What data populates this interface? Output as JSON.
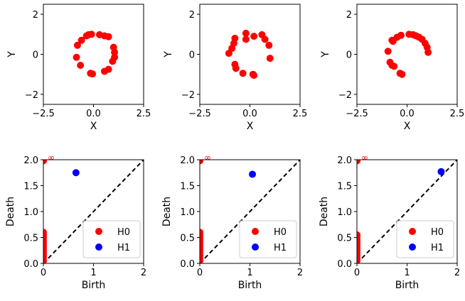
{
  "colors": {
    "h0": "#ff0000",
    "h1": "#0000ff",
    "scatter": "#ff0000",
    "axis": "#000000",
    "diag": "#000000"
  },
  "chart_data": [
    {
      "type": "scatter",
      "panel": "point-cloud-1",
      "xlabel": "X",
      "ylabel": "Y",
      "xlim": [
        -2.5,
        2.5
      ],
      "ylim": [
        -2.5,
        2.5
      ],
      "xticks": [
        "−2.5",
        "0.0",
        "2.5"
      ],
      "xtick_values": [
        -2.5,
        0,
        2.5
      ],
      "yticks": [
        "−2",
        "0",
        "2"
      ],
      "ytick_values": [
        -2,
        0,
        2
      ],
      "points": [
        [
          -0.25,
          0.98
        ],
        [
          -0.1,
          1.0
        ],
        [
          0.3,
          0.98
        ],
        [
          0.55,
          0.92
        ],
        [
          0.75,
          0.88
        ],
        [
          1.0,
          0.35
        ],
        [
          1.05,
          0.1
        ],
        [
          1.05,
          -0.15
        ],
        [
          0.95,
          -0.35
        ],
        [
          0.75,
          -0.75
        ],
        [
          0.55,
          -0.85
        ],
        [
          -0.05,
          -0.98
        ],
        [
          -0.15,
          -0.95
        ],
        [
          -0.65,
          -0.55
        ],
        [
          -0.85,
          -0.15
        ],
        [
          -0.8,
          0.45
        ],
        [
          -0.6,
          0.7
        ],
        [
          -0.35,
          0.92
        ]
      ]
    },
    {
      "type": "scatter",
      "panel": "point-cloud-2",
      "xlabel": "X",
      "ylabel": "Y",
      "xlim": [
        -2.5,
        2.5
      ],
      "ylim": [
        -2.5,
        2.5
      ],
      "xticks": [
        "−2.5",
        "0.0",
        "2.5"
      ],
      "xtick_values": [
        -2.5,
        0,
        2.5
      ],
      "yticks": [
        "−2",
        "0",
        "2"
      ],
      "ytick_values": [
        -2,
        0,
        2
      ],
      "points": [
        [
          -0.2,
          1.05
        ],
        [
          0.2,
          0.9
        ],
        [
          0.6,
          0.98
        ],
        [
          -0.2,
          0.75
        ],
        [
          -0.75,
          0.8
        ],
        [
          -0.8,
          0.55
        ],
        [
          -0.9,
          0.3
        ],
        [
          -1.05,
          0.05
        ],
        [
          0.75,
          0.75
        ],
        [
          0.95,
          0.45
        ],
        [
          1.0,
          -0.2
        ],
        [
          -0.75,
          -0.5
        ],
        [
          -0.7,
          -0.7
        ],
        [
          -0.35,
          -0.95
        ],
        [
          0.15,
          -1.0
        ],
        [
          0.2,
          -1.05
        ]
      ]
    },
    {
      "type": "scatter",
      "panel": "point-cloud-3",
      "xlabel": "X",
      "ylabel": "Y",
      "xlim": [
        -2.5,
        2.5
      ],
      "ylim": [
        -2.5,
        2.5
      ],
      "xticks": [
        "−2.5",
        "0.0",
        "2.5"
      ],
      "xtick_values": [
        -2.5,
        0,
        2.5
      ],
      "yticks": [
        "−2",
        "0",
        "2"
      ],
      "ytick_values": [
        -2,
        0,
        2
      ],
      "points": [
        [
          0.1,
          1.0
        ],
        [
          0.3,
          0.98
        ],
        [
          0.45,
          0.92
        ],
        [
          0.6,
          0.85
        ],
        [
          0.75,
          0.75
        ],
        [
          0.9,
          0.55
        ],
        [
          1.0,
          0.35
        ],
        [
          1.05,
          0.1
        ],
        [
          -0.3,
          0.95
        ],
        [
          -0.5,
          0.85
        ],
        [
          -0.7,
          0.65
        ],
        [
          -0.75,
          0.7
        ],
        [
          -0.95,
          0.15
        ],
        [
          -0.85,
          -0.4
        ],
        [
          -0.75,
          -0.55
        ],
        [
          -0.65,
          -0.6
        ],
        [
          -0.35,
          -0.95
        ],
        [
          -0.25,
          -1.0
        ]
      ]
    },
    {
      "type": "scatter",
      "panel": "persistence-diagram-1",
      "xlabel": "Birth",
      "ylabel": "Death",
      "xlim": [
        0,
        2
      ],
      "ylim": [
        0,
        2
      ],
      "xticks": [
        "0",
        "1",
        "2"
      ],
      "xtick_values": [
        0,
        1,
        2
      ],
      "yticks": [
        "0.0",
        "0.5",
        "1.0",
        "1.5",
        "2.0"
      ],
      "ytick_values": [
        0,
        0.5,
        1.0,
        1.5,
        2.0
      ],
      "infinity_label": "∞",
      "series": [
        {
          "name": "H0",
          "points": [
            [
              0,
              1.98
            ],
            [
              0,
              0.6
            ],
            [
              0,
              0.55
            ],
            [
              0,
              0.5
            ],
            [
              0,
              0.45
            ],
            [
              0,
              0.4
            ],
            [
              0,
              0.35
            ],
            [
              0,
              0.3
            ],
            [
              0,
              0.25
            ],
            [
              0,
              0.2
            ],
            [
              0,
              0.15
            ],
            [
              0,
              0.1
            ],
            [
              0,
              0.05
            ]
          ]
        },
        {
          "name": "H1",
          "points": [
            [
              0.65,
              1.75
            ]
          ]
        }
      ],
      "legend": "lower-right"
    },
    {
      "type": "scatter",
      "panel": "persistence-diagram-2",
      "xlabel": "Birth",
      "ylabel": "Death",
      "xlim": [
        0,
        2
      ],
      "ylim": [
        0,
        2
      ],
      "xticks": [
        "0",
        "1",
        "2"
      ],
      "xtick_values": [
        0,
        1,
        2
      ],
      "yticks": [
        "0.0",
        "0.5",
        "1.0",
        "1.5",
        "2.0"
      ],
      "ytick_values": [
        0,
        0.5,
        1.0,
        1.5,
        2.0
      ],
      "infinity_label": "∞",
      "series": [
        {
          "name": "H0",
          "points": [
            [
              0,
              1.98
            ],
            [
              0,
              0.6
            ],
            [
              0,
              0.55
            ],
            [
              0,
              0.5
            ],
            [
              0,
              0.45
            ],
            [
              0,
              0.4
            ],
            [
              0,
              0.35
            ],
            [
              0,
              0.3
            ],
            [
              0,
              0.25
            ],
            [
              0,
              0.2
            ],
            [
              0,
              0.15
            ],
            [
              0,
              0.1
            ],
            [
              0,
              0.05
            ]
          ]
        },
        {
          "name": "H1",
          "points": [
            [
              1.05,
              1.72
            ]
          ]
        }
      ],
      "legend": "lower-right"
    },
    {
      "type": "scatter",
      "panel": "persistence-diagram-3",
      "xlabel": "Birth",
      "ylabel": "Death",
      "xlim": [
        0,
        2
      ],
      "ylim": [
        0,
        2
      ],
      "xticks": [
        "0",
        "1",
        "2"
      ],
      "xtick_values": [
        0,
        1,
        2
      ],
      "yticks": [
        "0.0",
        "0.5",
        "1.0",
        "1.5",
        "2.0"
      ],
      "ytick_values": [
        0,
        0.5,
        1.0,
        1.5,
        2.0
      ],
      "infinity_label": "∞",
      "series": [
        {
          "name": "H0",
          "points": [
            [
              0,
              1.98
            ],
            [
              0,
              0.55
            ],
            [
              0,
              0.5
            ],
            [
              0,
              0.45
            ],
            [
              0,
              0.4
            ],
            [
              0,
              0.35
            ],
            [
              0,
              0.3
            ],
            [
              0,
              0.25
            ],
            [
              0,
              0.2
            ],
            [
              0,
              0.15
            ],
            [
              0,
              0.1
            ],
            [
              0,
              0.05
            ]
          ]
        },
        {
          "name": "H1",
          "points": [
            [
              1.68,
              1.77
            ]
          ]
        }
      ],
      "legend": "lower-right"
    }
  ]
}
